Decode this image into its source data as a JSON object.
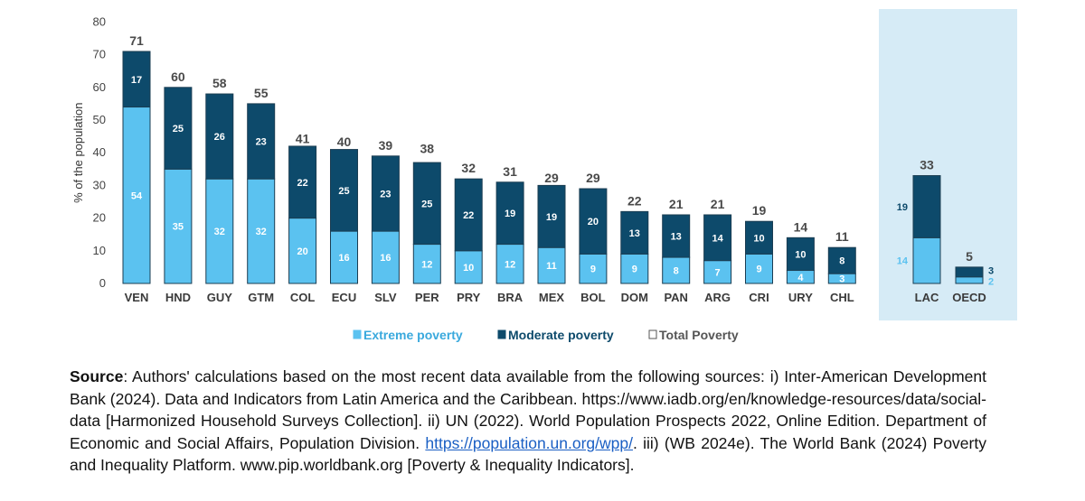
{
  "chart_data": {
    "type": "bar",
    "stacked": true,
    "ylabel": "% of the population",
    "ylim": [
      0,
      80
    ],
    "yticks": [
      0,
      10,
      20,
      30,
      40,
      50,
      60,
      70,
      80
    ],
    "categories": [
      "VEN",
      "HND",
      "GUY",
      "GTM",
      "COL",
      "ECU",
      "SLV",
      "PER",
      "PRY",
      "BRA",
      "MEX",
      "BOL",
      "DOM",
      "PAN",
      "ARG",
      "CRI",
      "URY",
      "CHL"
    ],
    "series": [
      {
        "name": "Extreme poverty",
        "color": "#5bc2f0",
        "values": [
          54,
          35,
          32,
          32,
          20,
          16,
          16,
          12,
          10,
          12,
          11,
          9,
          9,
          8,
          7,
          9,
          4,
          3
        ]
      },
      {
        "name": "Moderate poverty",
        "color": "#0d4a6b",
        "values": [
          17,
          25,
          26,
          23,
          22,
          25,
          23,
          25,
          22,
          19,
          19,
          20,
          13,
          13,
          14,
          10,
          10,
          8
        ]
      }
    ],
    "totals": [
      71,
      60,
      58,
      55,
      41,
      40,
      39,
      38,
      32,
      31,
      29,
      29,
      22,
      21,
      21,
      19,
      14,
      11
    ],
    "highlight_panel": {
      "categories": [
        "LAC",
        "OECD"
      ],
      "extreme": [
        14,
        2
      ],
      "moderate": [
        19,
        3
      ],
      "totals": [
        33,
        5
      ]
    },
    "legend": [
      {
        "label": "Extreme poverty",
        "color": "#5bc2f0"
      },
      {
        "label": "Moderate poverty",
        "color": "#0d4a6b"
      },
      {
        "label": "Total Poverty",
        "color": "#ffffff"
      }
    ]
  },
  "source": {
    "label": "Source",
    "text1": ": Authors' calculations based on the most recent data available from the following sources: i) Inter-American Development Bank (2024). Data and Indicators from Latin America and the Caribbean. https://www.iadb.org/en/knowledge-resources/data/social-data [Harmonized Household Surveys Collection]. ii) UN (2022). World Population Prospects 2022, Online Edition. Department of Economic and Social Affairs, Population Division. ",
    "link": "https://population.un.org/wpp/",
    "text2": ". iii) (WB 2024e). The World Bank (2024) Poverty and Inequality Platform. www.pip.worldbank.org [Poverty & Inequality Indicators]."
  }
}
